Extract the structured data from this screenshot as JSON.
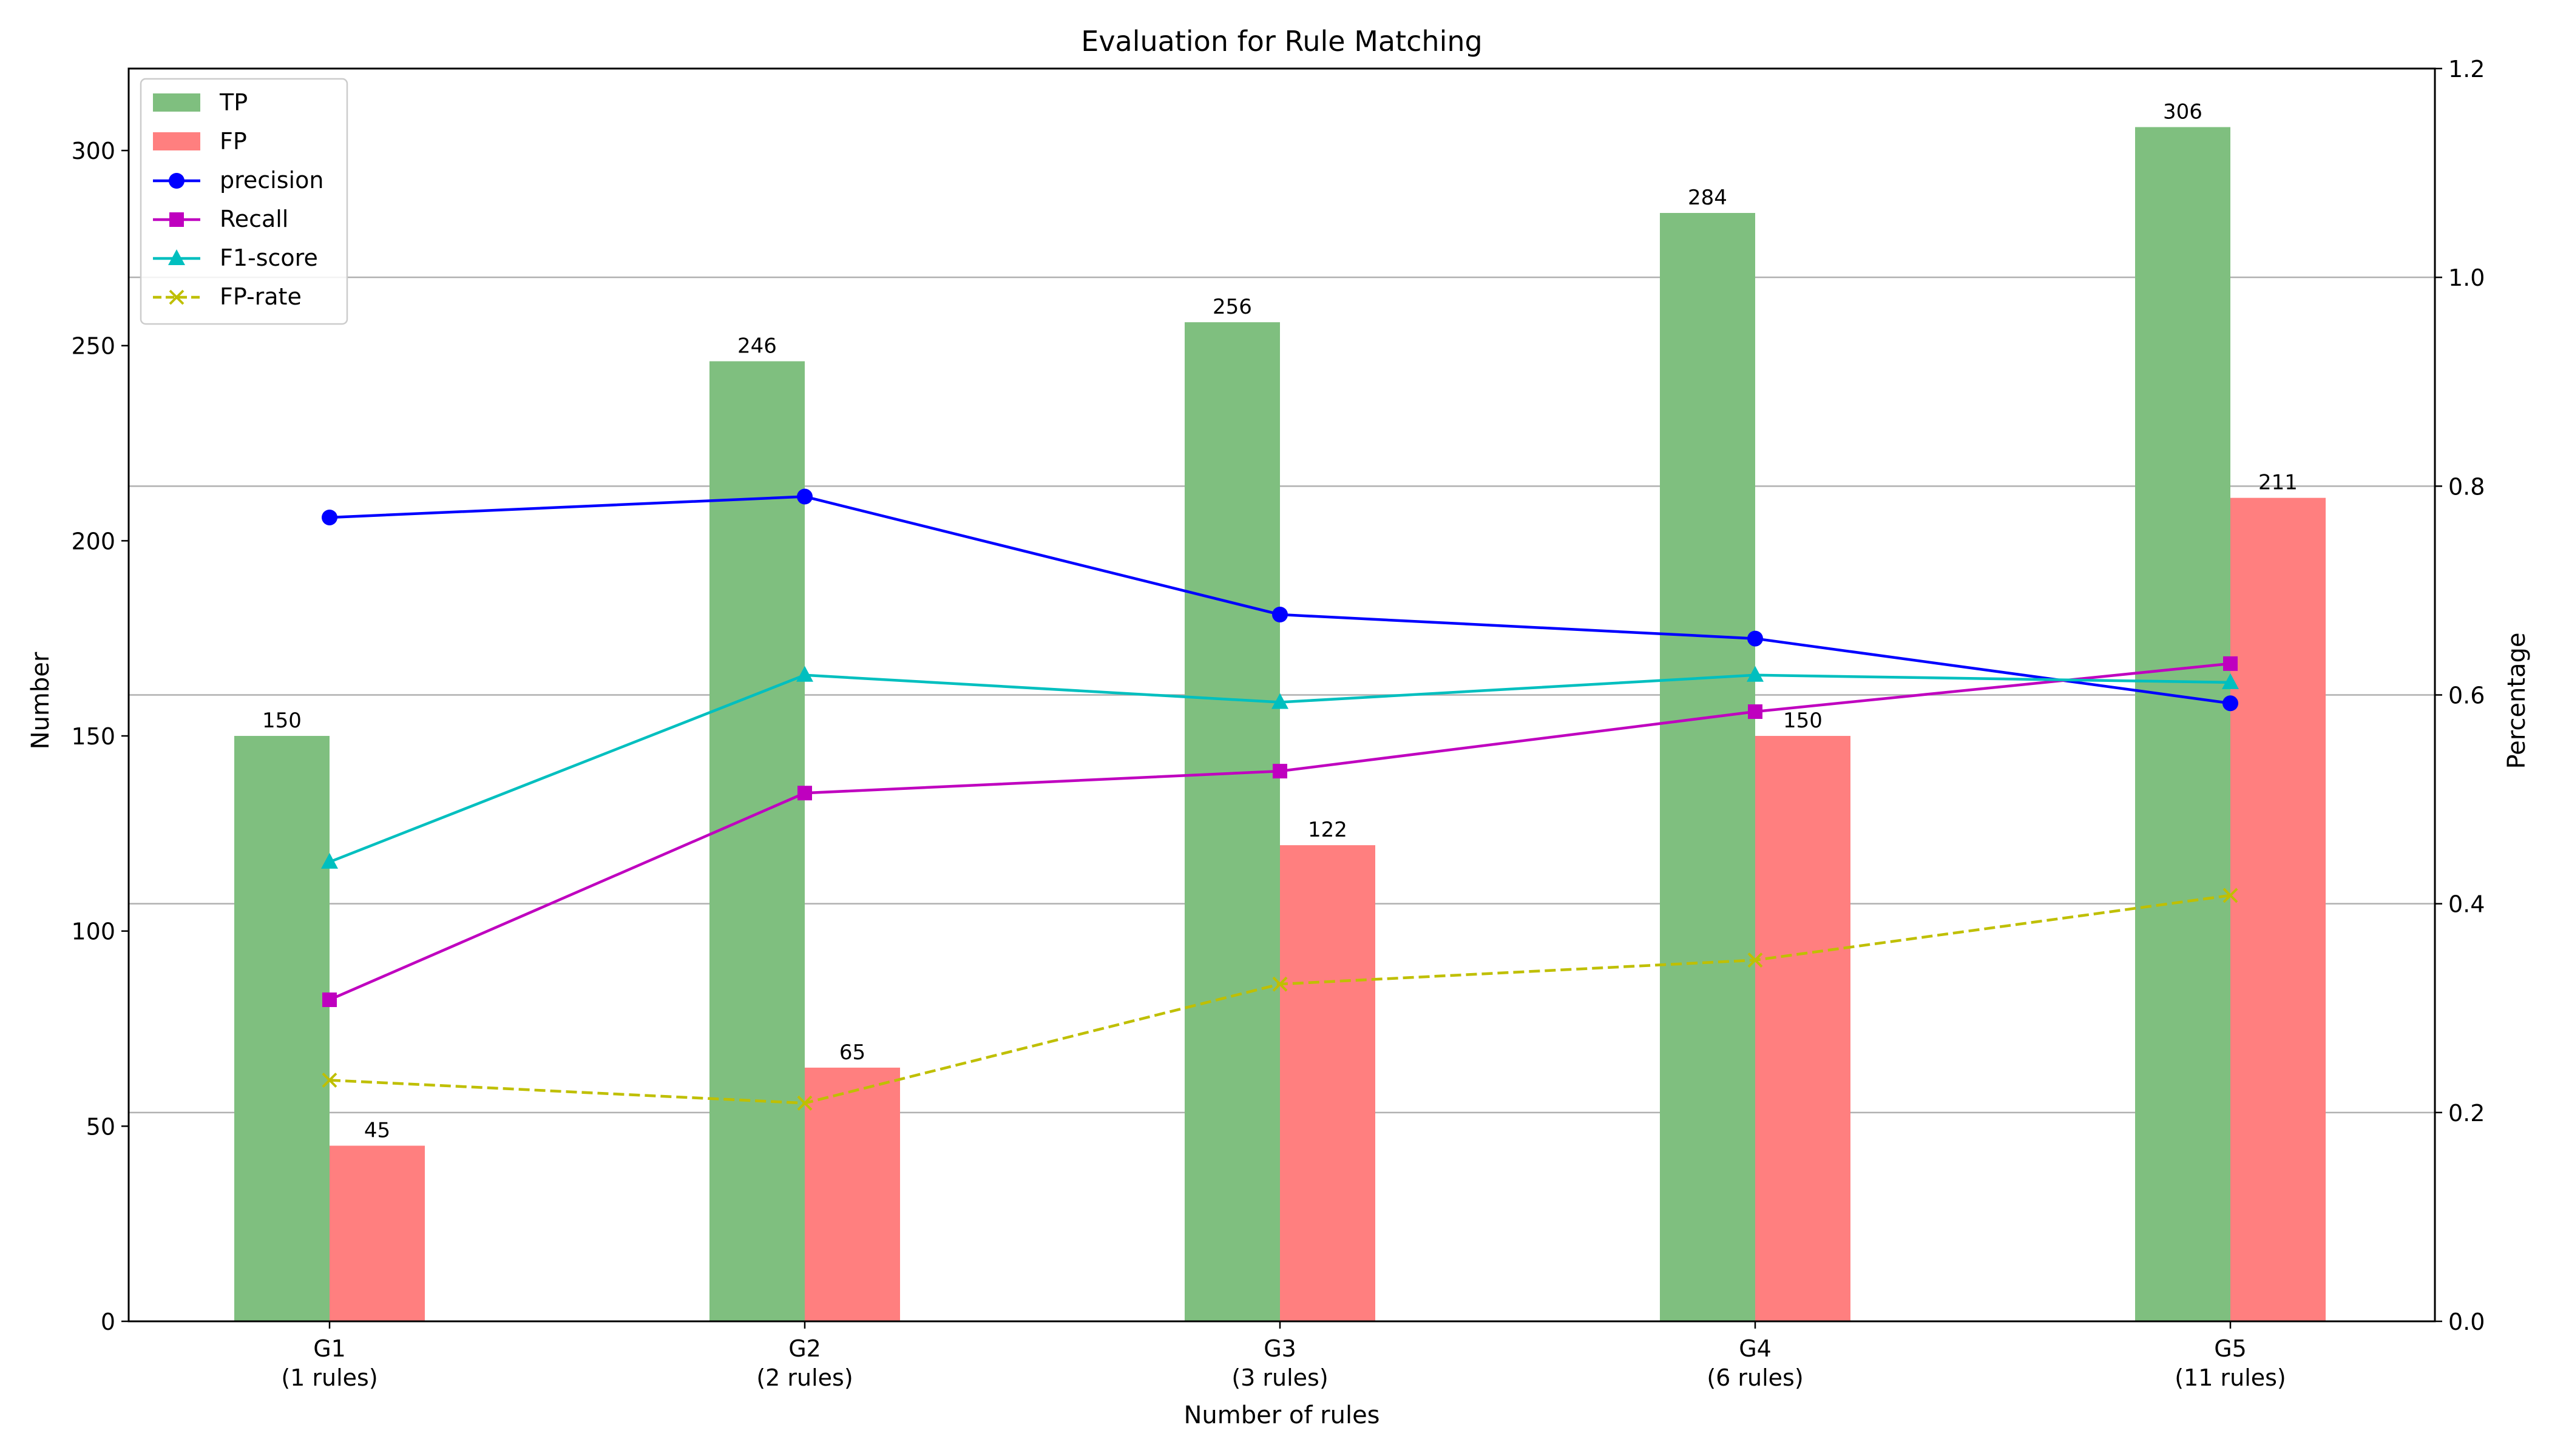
{
  "chart_data": {
    "type": "bar",
    "title": "Evaluation for Rule Matching",
    "xlabel": "Number of rules",
    "ylabel": "Number",
    "y2label": "Percentage",
    "categories": [
      [
        "G1",
        "(1 rules)"
      ],
      [
        "G2",
        "(2 rules)"
      ],
      [
        "G3",
        "(3 rules)"
      ],
      [
        "G4",
        "(6 rules)"
      ],
      [
        "G5",
        "(11 rules)"
      ]
    ],
    "ylim": [
      0,
      321
    ],
    "yticks": [
      0,
      50,
      100,
      150,
      200,
      250,
      300
    ],
    "y2lim": [
      0,
      1.2
    ],
    "y2ticks": [
      "0.0",
      "0.2",
      "0.4",
      "0.6",
      "0.8",
      "1.0",
      "1.2"
    ],
    "grid": "horizontal, right axis",
    "legend_position": "top-left",
    "bar_series": [
      {
        "name": "TP",
        "values": [
          150,
          246,
          256,
          284,
          306
        ],
        "color": "#7fbf7f"
      },
      {
        "name": "FP",
        "values": [
          45,
          65,
          122,
          150,
          211
        ],
        "color": "#ff7f7f"
      }
    ],
    "line_series": [
      {
        "name": "precision",
        "values": [
          0.77,
          0.79,
          0.677,
          0.654,
          0.592
        ],
        "color": "#0000ff",
        "marker": "circle",
        "dash": "solid"
      },
      {
        "name": "Recall",
        "values": [
          0.308,
          0.506,
          0.527,
          0.584,
          0.63
        ],
        "color": "#bf00bf",
        "marker": "square",
        "dash": "solid"
      },
      {
        "name": "F1-score",
        "values": [
          0.44,
          0.619,
          0.593,
          0.619,
          0.612
        ],
        "color": "#00bfbf",
        "marker": "triangle",
        "dash": "solid"
      },
      {
        "name": "FP-rate",
        "values": [
          0.231,
          0.209,
          0.323,
          0.346,
          0.408
        ],
        "color": "#bfbf00",
        "marker": "x",
        "dash": "dashed"
      }
    ]
  }
}
